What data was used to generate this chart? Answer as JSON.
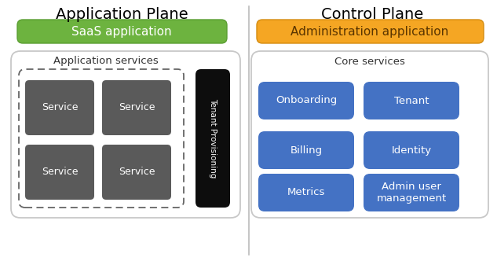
{
  "title_left": "Application Plane",
  "title_right": "Control Plane",
  "saas_label": "SaaS application",
  "saas_color": "#6db33f",
  "saas_edge_color": "#5a9e32",
  "admin_label": "Administration application",
  "admin_color": "#f5a623",
  "admin_edge_color": "#d48c10",
  "admin_text_color": "#7a4a00",
  "app_services_label": "Application services",
  "core_services_label": "Core services",
  "service_labels": [
    "Service",
    "Service",
    "Service",
    "Service"
  ],
  "service_color": "#5a5a5a",
  "tenant_label": "Tenant Provisioning",
  "tenant_color": "#0d0d0d",
  "core_boxes": [
    [
      "Onboarding",
      "Tenant"
    ],
    [
      "Billing",
      "Identity"
    ],
    [
      "Metrics",
      "Admin user\nmanagement"
    ]
  ],
  "core_box_color": "#4472c4",
  "divider_color": "#bbbbbb",
  "bg_color": "#ffffff",
  "title_fontsize": 14,
  "section_label_fontsize": 9.5,
  "saas_fontsize": 11,
  "service_fontsize": 9,
  "core_fontsize": 9.5
}
